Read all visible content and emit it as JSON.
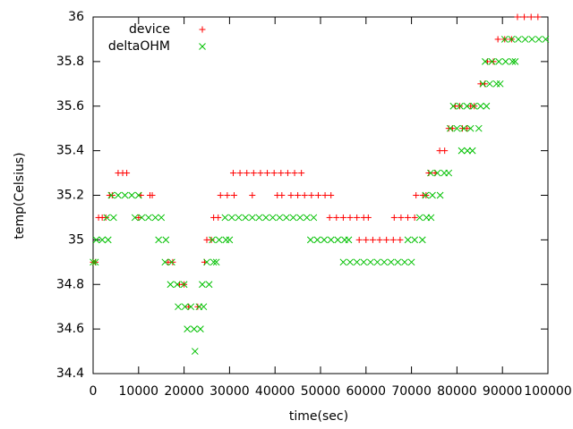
{
  "chart_data": {
    "type": "scatter",
    "xlabel": "time(sec)",
    "ylabel": "temp(Celsius)",
    "xlim": [
      0,
      100000
    ],
    "ylim": [
      34.4,
      36
    ],
    "xticks": [
      0,
      10000,
      20000,
      30000,
      40000,
      50000,
      60000,
      70000,
      80000,
      90000,
      100000
    ],
    "yticks": [
      34.4,
      34.6,
      34.8,
      35,
      35.2,
      35.4,
      35.6,
      35.8,
      36
    ],
    "grid": false,
    "legend": "top-left",
    "series": [
      {
        "name": "device",
        "color": "#ff0000",
        "marker": "plus",
        "x": [
          0,
          500,
          1200,
          2000,
          2800,
          3600,
          4200,
          5500,
          6500,
          7400,
          10000,
          10500,
          12500,
          13000,
          16500,
          17500,
          19000,
          20000,
          21000,
          23000,
          24500,
          25000,
          26000,
          26500,
          27500,
          28000,
          29500,
          31000,
          30800,
          32300,
          33800,
          35300,
          36800,
          38300,
          39800,
          41300,
          42800,
          44300,
          45800,
          35000,
          40500,
          41500,
          43500,
          45000,
          46500,
          48000,
          49500,
          51000,
          52300,
          52000,
          53500,
          55000,
          56500,
          58000,
          59500,
          60500,
          58500,
          60000,
          61500,
          63000,
          64500,
          66000,
          67500,
          66200,
          67700,
          69200,
          70700,
          71000,
          72500,
          73200,
          73800,
          75200,
          76200,
          77300,
          78200,
          79000,
          79600,
          80600,
          81200,
          82200,
          83000,
          83800,
          85200,
          86100,
          86700,
          88000,
          89000,
          90500,
          92000,
          93300,
          94800,
          96300,
          97800
        ],
        "values": [
          34.9,
          34.9,
          35.1,
          35.1,
          35.1,
          35.2,
          35.2,
          35.3,
          35.3,
          35.3,
          35.1,
          35.2,
          35.2,
          35.2,
          34.9,
          34.9,
          34.8,
          34.8,
          34.7,
          34.7,
          34.9,
          35,
          35,
          35.1,
          35.1,
          35.2,
          35.2,
          35.2,
          35.3,
          35.3,
          35.3,
          35.3,
          35.3,
          35.3,
          35.3,
          35.3,
          35.3,
          35.3,
          35.3,
          35.2,
          35.2,
          35.2,
          35.2,
          35.2,
          35.2,
          35.2,
          35.2,
          35.2,
          35.2,
          35.1,
          35.1,
          35.1,
          35.1,
          35.1,
          35.1,
          35.1,
          35,
          35,
          35,
          35,
          35,
          35,
          35,
          35.1,
          35.1,
          35.1,
          35.1,
          35.2,
          35.2,
          35.2,
          35.3,
          35.3,
          35.4,
          35.4,
          35.5,
          35.5,
          35.6,
          35.6,
          35.5,
          35.5,
          35.6,
          35.6,
          35.7,
          35.7,
          35.8,
          35.8,
          35.9,
          35.9,
          35.9,
          36,
          36,
          36,
          36
        ]
      },
      {
        "name": "deltaOHM",
        "color": "#00c000",
        "marker": "cross",
        "x": [
          0,
          500,
          700,
          2000,
          3300,
          3000,
          4500,
          4000,
          5500,
          7000,
          8500,
          10000,
          9200,
          10700,
          12200,
          13700,
          15000,
          14400,
          16000,
          15800,
          17300,
          17000,
          18500,
          20000,
          18700,
          20200,
          21500,
          20700,
          22200,
          23600,
          22400,
          23300,
          24300,
          24000,
          25500,
          25000,
          26500,
          27100,
          26200,
          27700,
          29200,
          30000,
          29000,
          30500,
          32000,
          33500,
          35000,
          36500,
          38000,
          39500,
          41000,
          42500,
          44000,
          45500,
          47000,
          48500,
          47800,
          49300,
          50800,
          52300,
          53800,
          55300,
          56200,
          55000,
          56500,
          58000,
          59500,
          61000,
          62500,
          64000,
          65500,
          67000,
          68500,
          70000,
          69200,
          70700,
          72400,
          71800,
          73300,
          74300,
          73100,
          74600,
          76300,
          74200,
          75700,
          77200,
          78200,
          81000,
          82300,
          83400,
          78500,
          80000,
          81500,
          83000,
          84800,
          79200,
          80700,
          82200,
          83700,
          85200,
          86500,
          85700,
          87200,
          88700,
          89500,
          86200,
          87700,
          89200,
          90700,
          92200,
          92800,
          90500,
          92000,
          93500,
          95000,
          96500,
          98000,
          99500
        ],
        "values": [
          34.9,
          34.9,
          35,
          35,
          35,
          35.1,
          35.1,
          35.2,
          35.2,
          35.2,
          35.2,
          35.2,
          35.1,
          35.1,
          35.1,
          35.1,
          35.1,
          35,
          35,
          34.9,
          34.9,
          34.8,
          34.8,
          34.8,
          34.7,
          34.7,
          34.7,
          34.6,
          34.6,
          34.6,
          34.5,
          34.7,
          34.7,
          34.8,
          34.8,
          34.9,
          34.9,
          34.9,
          35,
          35,
          35,
          35,
          35.1,
          35.1,
          35.1,
          35.1,
          35.1,
          35.1,
          35.1,
          35.1,
          35.1,
          35.1,
          35.1,
          35.1,
          35.1,
          35.1,
          35,
          35,
          35,
          35,
          35,
          35,
          35,
          34.9,
          34.9,
          34.9,
          34.9,
          34.9,
          34.9,
          34.9,
          34.9,
          34.9,
          34.9,
          34.9,
          35,
          35,
          35,
          35.1,
          35.1,
          35.1,
          35.2,
          35.2,
          35.2,
          35.3,
          35.3,
          35.3,
          35.3,
          35.4,
          35.4,
          35.4,
          35.5,
          35.5,
          35.5,
          35.5,
          35.5,
          35.6,
          35.6,
          35.6,
          35.6,
          35.6,
          35.6,
          35.7,
          35.7,
          35.7,
          35.7,
          35.8,
          35.8,
          35.8,
          35.8,
          35.8,
          35.8,
          35.9,
          35.9,
          35.9,
          35.9,
          35.9,
          35.9,
          35.9
        ]
      }
    ]
  }
}
